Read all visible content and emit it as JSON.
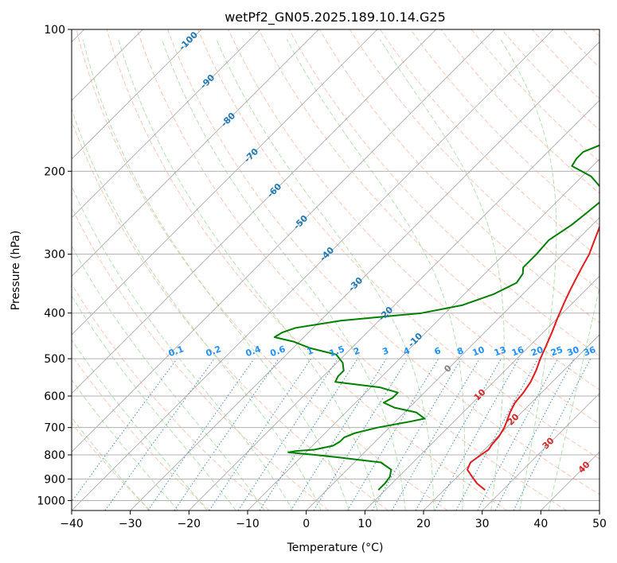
{
  "chart_data": {
    "type": "line",
    "title": "wetPf2_GN05.2025.189.10.14.G25",
    "xlabel": "Temperature (°C)",
    "ylabel": "Pressure (hPa)",
    "xlim": [
      -40,
      50
    ],
    "ylim": [
      1050,
      100
    ],
    "y_scale": "log",
    "x_ticks": [
      -40,
      -30,
      -20,
      -10,
      0,
      10,
      20,
      30,
      40,
      50
    ],
    "y_ticks": [
      100,
      200,
      300,
      400,
      500,
      600,
      700,
      800,
      900,
      1000
    ],
    "grid": "on",
    "skew_angle_deg": 45,
    "series": [
      {
        "color": "#e41a1c",
        "p": [
          950,
          920,
          890,
          860,
          830,
          800,
          780,
          760,
          730,
          700,
          680,
          650,
          620,
          590,
          560,
          530,
          500,
          470,
          440,
          410,
          380,
          360,
          340,
          320,
          300,
          280,
          265,
          250,
          235,
          220,
          210,
          203,
          196,
          188,
          180,
          165,
          150,
          135,
          125,
          115,
          100
        ],
        "values": [
          27.0,
          24.5,
          22.5,
          20.5,
          19.8,
          20.3,
          20.7,
          20.4,
          20.2,
          19.6,
          19.0,
          18.0,
          17.2,
          16.9,
          16.3,
          15.3,
          14.0,
          12.8,
          11.5,
          10.0,
          8.5,
          7.5,
          6.5,
          5.5,
          4.5,
          3.0,
          1.8,
          0.5,
          -0.4,
          -0.5,
          0.5,
          2.0,
          4.0,
          7.5,
          10.0,
          12.0,
          14.0,
          16.5,
          18.5,
          21.0,
          26.5
        ]
      },
      {
        "color": "#008000",
        "p": [
          950,
          920,
          890,
          860,
          830,
          810,
          800,
          790,
          785,
          780,
          765,
          750,
          735,
          720,
          700,
          680,
          670,
          650,
          635,
          620,
          605,
          590,
          575,
          560,
          545,
          530,
          510,
          490,
          475,
          460,
          450,
          440,
          430,
          415,
          400,
          385,
          365,
          345,
          330,
          320,
          300,
          280,
          260,
          245,
          230,
          218,
          205,
          195,
          188,
          182,
          175,
          165,
          150,
          135,
          120,
          110,
          100
        ],
        "values": [
          8.8,
          8.8,
          8.5,
          7.5,
          4.5,
          -3.5,
          -8.0,
          -13.0,
          -12.0,
          -9.0,
          -6.5,
          -6.0,
          -6.0,
          -5.0,
          -2.0,
          2.5,
          4.5,
          2.0,
          -2.5,
          -5.2,
          -4.5,
          -4.5,
          -8.5,
          -17.0,
          -17.5,
          -17.5,
          -19.0,
          -21.5,
          -27.0,
          -31.0,
          -35.0,
          -34.5,
          -33.0,
          -26.5,
          -14.0,
          -8.5,
          -5.0,
          -3.0,
          -3.5,
          -4.5,
          -4.5,
          -4.8,
          -3.5,
          -3.0,
          -2.5,
          -4.5,
          -8.5,
          -13.5,
          -14.0,
          -14.0,
          -12.0,
          -10.0,
          -10.0,
          -9.0,
          -7.5,
          -5.5,
          -3.0
        ]
      }
    ],
    "reference_lines": {
      "dry_adiabats": "dashed salmon",
      "moist_adiabats": "dashed green",
      "mixing_ratio": "dotted blue"
    },
    "isotherm_labels": [
      "-100",
      "-90",
      "-80",
      "-70",
      "-60",
      "-50",
      "-40",
      "-30",
      "-20",
      "-10",
      "0",
      "10",
      "20",
      "30",
      "40"
    ],
    "mixing_ratio_labels": [
      "0.1",
      "0.2",
      "0.4",
      "0.6",
      "1",
      "1.5",
      "2",
      "3",
      "4",
      "6",
      "8",
      "10",
      "13",
      "16",
      "20",
      "25",
      "30",
      "36"
    ]
  },
  "colors": {
    "grid": "#b0b0b0",
    "isotherm": "#7f7f7f",
    "dry_adiabat": "#fcae91",
    "moist_adiabat": "#a1d99b",
    "mixing_ratio": "#3182bd",
    "isotherm_label_cold": "#1f78b4",
    "isotherm_label_zero": "#808080",
    "isotherm_label_warm": "#d62728",
    "mixing_label": "#1e90ff"
  }
}
